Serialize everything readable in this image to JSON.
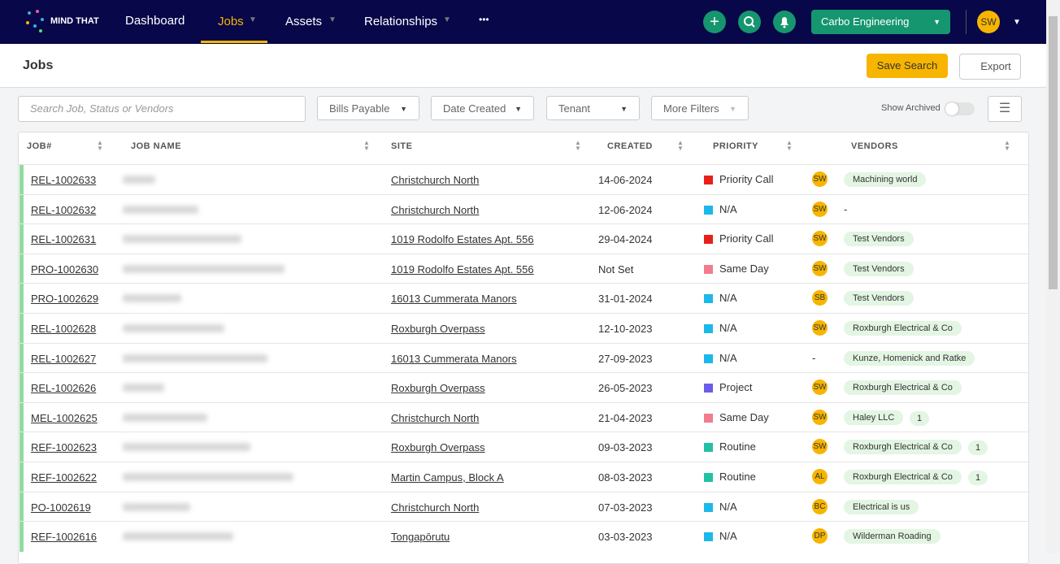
{
  "nav": {
    "logo": "MIND THAT",
    "items": [
      "Dashboard",
      "Jobs",
      "Assets",
      "Relationships"
    ],
    "more": "•••",
    "company": "Carbo Engineering",
    "user": "SW"
  },
  "header": {
    "title": "Jobs",
    "save": "Save Search",
    "export": "Export"
  },
  "filters": {
    "search": "Search Job, Status or Vendors",
    "dropdowns": [
      "Bills Payable",
      "Date Created",
      "Tenant",
      "More Filters"
    ],
    "archived": "Show Archived"
  },
  "table": {
    "columns": [
      "JOB#",
      "JOB NAME",
      "SITE",
      "CREATED",
      "PRIORITY",
      "VENDORS"
    ],
    "rows": [
      {
        "job": "REL-1002633",
        "site": "Christchurch North",
        "created": "14-06-2024",
        "priority": "Priority Call",
        "color": "#e8201a",
        "assignee": "SW",
        "vendor": "Machining world"
      },
      {
        "job": "REL-1002632",
        "site": "Christchurch North",
        "created": "12-06-2024",
        "priority": "N/A",
        "color": "#1cb8ea",
        "assignee": "SW",
        "vendor": "-"
      },
      {
        "job": "REL-1002631",
        "site": "1019 Rodolfo Estates Apt. 556",
        "created": "29-04-2024",
        "priority": "Priority Call",
        "color": "#e8201a",
        "assignee": "SW",
        "vendor": "Test Vendors"
      },
      {
        "job": "PRO-1002630",
        "site": "1019 Rodolfo Estates Apt. 556",
        "created": "Not Set",
        "priority": "Same Day",
        "color": "#f07c8e",
        "assignee": "SW",
        "vendor": "Test Vendors"
      },
      {
        "job": "PRO-1002629",
        "site": "16013 Cummerata Manors",
        "created": "31-01-2024",
        "priority": "N/A",
        "color": "#1cb8ea",
        "assignee": "SB",
        "vendor": "Test Vendors"
      },
      {
        "job": "REL-1002628",
        "site": "Roxburgh Overpass",
        "created": "12-10-2023",
        "priority": "N/A",
        "color": "#1cb8ea",
        "assignee": "SW",
        "vendor": "Roxburgh Electrical & Co"
      },
      {
        "job": "REL-1002627",
        "site": "16013 Cummerata Manors",
        "created": "27-09-2023",
        "priority": "N/A",
        "color": "#1cb8ea",
        "assignee": "-",
        "vendor": "Kunze, Homenick and Ratke"
      },
      {
        "job": "REL-1002626",
        "site": "Roxburgh Overpass",
        "created": "26-05-2023",
        "priority": "Project",
        "color": "#6b5ce7",
        "assignee": "SW",
        "vendor": "Roxburgh Electrical & Co"
      },
      {
        "job": "MEL-1002625",
        "site": "Christchurch North",
        "created": "21-04-2023",
        "priority": "Same Day",
        "color": "#f07c8e",
        "assignee": "SW",
        "vendor": "Haley LLC",
        "extra": 1
      },
      {
        "job": "REF-1002623",
        "site": "Roxburgh Overpass",
        "created": "09-03-2023",
        "priority": "Routine",
        "color": "#22c1a4",
        "assignee": "SW",
        "vendor": "Roxburgh Electrical & Co",
        "extra": 1
      },
      {
        "job": "REF-1002622",
        "site": "Martin Campus, Block A",
        "created": "08-03-2023",
        "priority": "Routine",
        "color": "#22c1a4",
        "assignee": "AL",
        "vendor": "Roxburgh Electrical & Co",
        "extra": 1
      },
      {
        "job": "PO-1002619",
        "site": "Christchurch North",
        "created": "07-03-2023",
        "priority": "N/A",
        "color": "#1cb8ea",
        "assignee": "BC",
        "vendor": "Electrical is us"
      },
      {
        "job": "REF-1002616",
        "site": "Tongapōrutu",
        "created": "03-03-2023",
        "priority": "N/A",
        "color": "#1cb8ea",
        "assignee": "DP",
        "vendor": "Wilderman Roading"
      }
    ]
  }
}
